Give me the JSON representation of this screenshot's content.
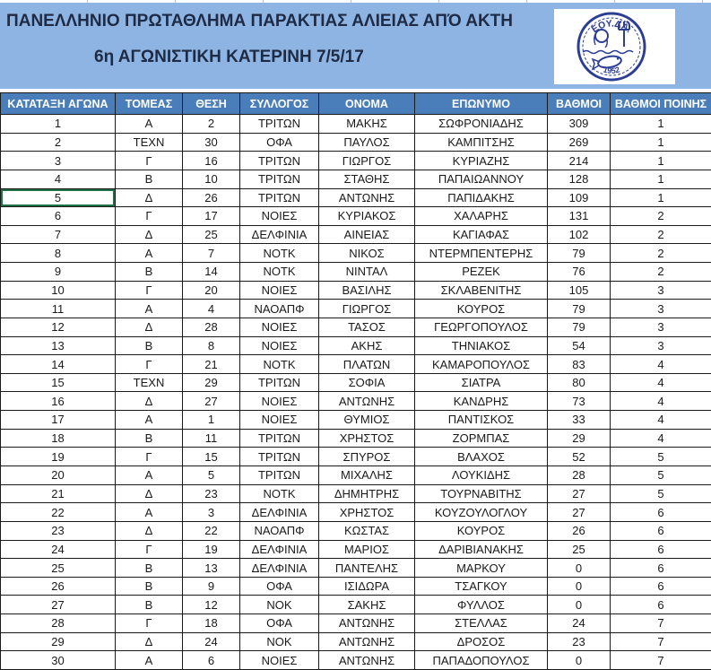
{
  "banner": {
    "title": "ΠΑΝΕΛΛΗΝΙΟ ΠΡΩΤΑΘΛΗΜΑ ΠΑΡΑΚΤΙΑΣ ΑΛΙΕΙΑΣ ΑΠΌ ΑΚΤΗ",
    "subtitle": "6η ΑΓΩΝΙΣΤΙΚΗ ΚΑΤΕΡΙΝΗ 7/5/17"
  },
  "logo": {
    "org": "ΕΟΥ.ΔΑ.",
    "year": "1952"
  },
  "colors": {
    "banner_bg": "#8db4e2",
    "banner_text": "#1f2a44",
    "header_bg": "#4a7ebb",
    "selection_color": "#1e7145",
    "logo_ink": "#2c3e94"
  },
  "table": {
    "headers": [
      "ΚΑΤΑΤΑΞΗ ΑΓΩΝΑ",
      "ΤΟΜΕΑΣ",
      "ΘΕΣΗ",
      "ΣΥΛΛΟΓΟΣ",
      "ΟΝΟΜΑ",
      "ΕΠΩΝΥΜΟ",
      "ΒΑΘΜΟΙ",
      "ΒΑΘΜΟΙ ΠΟΙΝΗΣ"
    ],
    "rows": [
      [
        "1",
        "Α",
        "2",
        "ΤΡΙΤΩΝ",
        "ΜΑΚΗΣ",
        "ΣΩΦΡΟΝΙΑΔΗΣ",
        "309",
        "1"
      ],
      [
        "2",
        "ΤΕΧΝ",
        "30",
        "ΟΦΑ",
        "ΠΑΥΛΟΣ",
        "ΚΑΜΠΙΤΣΗΣ",
        "269",
        "1"
      ],
      [
        "3",
        "Γ",
        "16",
        "ΤΡΙΤΩΝ",
        "ΓΙΩΡΓΟΣ",
        "ΚΥΡΙΑΖΗΣ",
        "214",
        "1"
      ],
      [
        "4",
        "Β",
        "10",
        "ΤΡΙΤΩΝ",
        "ΣΤΑΘΗΣ",
        "ΠΑΠΑΙΩΑΝΝΟΥ",
        "128",
        "1"
      ],
      [
        "5",
        "Δ",
        "26",
        "ΤΡΙΤΩΝ",
        "ΑΝΤΩΝΗΣ",
        "ΠΑΠΙΔΑΚΗΣ",
        "109",
        "1"
      ],
      [
        "6",
        "Γ",
        "17",
        "ΝΟΙΕΣ",
        "ΚΥΡΙΑΚΟΣ",
        "ΧΑΛΑΡΗΣ",
        "131",
        "2"
      ],
      [
        "7",
        "Δ",
        "25",
        "ΔΕΛΦΙΝΙΑ",
        "ΑΙΝΕΙΑΣ",
        "ΚΑΓΙΑΦΑΣ",
        "102",
        "2"
      ],
      [
        "8",
        "Α",
        "7",
        "ΝΟΤΚ",
        "ΝΙΚΟΣ",
        "ΝΤΕΡΜΠΕΝΤΕΡΗΣ",
        "79",
        "2"
      ],
      [
        "9",
        "Β",
        "14",
        "ΝΟΤΚ",
        "ΝΙΝΤΑΛ",
        "ΡΕΖΕΚ",
        "76",
        "2"
      ],
      [
        "10",
        "Γ",
        "20",
        "ΝΟΙΕΣ",
        "ΒΑΣΙΛΗΣ",
        "ΣΚΛΑΒΕΝΙΤΗΣ",
        "105",
        "3"
      ],
      [
        "11",
        "Α",
        "4",
        "ΝΑΟΑΠΦ",
        "ΓΙΩΡΓΟΣ",
        "ΚΟΥΡΟΣ",
        "79",
        "3"
      ],
      [
        "12",
        "Δ",
        "28",
        "ΝΟΙΕΣ",
        "ΤΑΣΟΣ",
        "ΓΕΩΡΓΟΠΟΥΛΟΣ",
        "79",
        "3"
      ],
      [
        "13",
        "Β",
        "8",
        "ΝΟΙΕΣ",
        "ΑΚΗΣ",
        "ΤΗΝΙΑΚΟΣ",
        "54",
        "3"
      ],
      [
        "14",
        "Γ",
        "21",
        "ΝΟΤΚ",
        "ΠΛΑΤΩΝ",
        "ΚΑΜΑΡΟΠΟΥΛΟΣ",
        "83",
        "4"
      ],
      [
        "15",
        "ΤΕΧΝ",
        "29",
        "ΤΡΙΤΩΝ",
        "ΣΟΦΙΑ",
        "ΣΙΑΤΡΑ",
        "80",
        "4"
      ],
      [
        "16",
        "Δ",
        "27",
        "ΝΟΙΕΣ",
        "ΑΝΤΩΝΗΣ",
        "ΚΑΝΔΡΗΣ",
        "73",
        "4"
      ],
      [
        "17",
        "Α",
        "1",
        "ΝΟΙΕΣ",
        "ΘΥΜΙΟΣ",
        "ΠΑΝΤΙΣΚΟΣ",
        "33",
        "4"
      ],
      [
        "18",
        "Β",
        "11",
        "ΤΡΙΤΩΝ",
        "ΧΡΗΣΤΟΣ",
        "ΖΟΡΜΠΑΣ",
        "29",
        "4"
      ],
      [
        "19",
        "Γ",
        "15",
        "ΤΡΙΤΩΝ",
        "ΣΠΥΡΟΣ",
        "ΒΛΑΧΟΣ",
        "52",
        "5"
      ],
      [
        "20",
        "Α",
        "5",
        "ΤΡΙΤΩΝ",
        "ΜΙΧΑΛΗΣ",
        "ΛΟΥΚΙΔΗΣ",
        "28",
        "5"
      ],
      [
        "21",
        "Δ",
        "23",
        "ΝΟΤΚ",
        "ΔΗΜΗΤΡΗΣ",
        "ΤΟΥΡΝΑΒΙΤΗΣ",
        "27",
        "5"
      ],
      [
        "22",
        "Α",
        "3",
        "ΔΕΛΦΙΝΙΑ",
        "ΧΡΗΣΤΟΣ",
        "ΚΟΥΖΟΥΛΟΓΛΟΥ",
        "27",
        "6"
      ],
      [
        "23",
        "Δ",
        "22",
        "ΝΑΟΑΠΦ",
        "ΚΩΣΤΑΣ",
        "ΚΟΥΡΟΣ",
        "26",
        "6"
      ],
      [
        "24",
        "Γ",
        "19",
        "ΔΕΛΦΙΝΙΑ",
        "ΜΑΡΙΟΣ",
        "ΔΑΡΙΒΙΑΝΑΚΗΣ",
        "25",
        "6"
      ],
      [
        "25",
        "Β",
        "13",
        "ΔΕΛΦΙΝΙΑ",
        "ΠΑΝΤΕΛΗΣ",
        "ΜΑΡΚΟΥ",
        "0",
        "6"
      ],
      [
        "26",
        "Β",
        "9",
        "ΟΦΑ",
        "ΙΣΙΔΩΡΑ",
        "ΤΣΑΓΚΟΥ",
        "0",
        "6"
      ],
      [
        "27",
        "Β",
        "12",
        "ΝΟΚ",
        "ΣΑΚΗΣ",
        "ΦΥΛΛΟΣ",
        "0",
        "6"
      ],
      [
        "28",
        "Γ",
        "18",
        "ΟΦΑ",
        "ΑΝΤΩΝΗΣ",
        "ΣΤΕΛΛΑΣ",
        "24",
        "7"
      ],
      [
        "29",
        "Δ",
        "24",
        "ΝΟΚ",
        "ΑΝΤΩΝΗΣ",
        "ΔΡΟΣΟΣ",
        "23",
        "7"
      ],
      [
        "30",
        "Α",
        "6",
        "ΝΟΙΕΣ",
        "ΑΝΤΩΝΗΣ",
        "ΠΑΠΑΔΟΠΟΥΛΟΣ",
        "0",
        "7"
      ]
    ],
    "selection": {
      "row": 4,
      "col": 0
    }
  }
}
